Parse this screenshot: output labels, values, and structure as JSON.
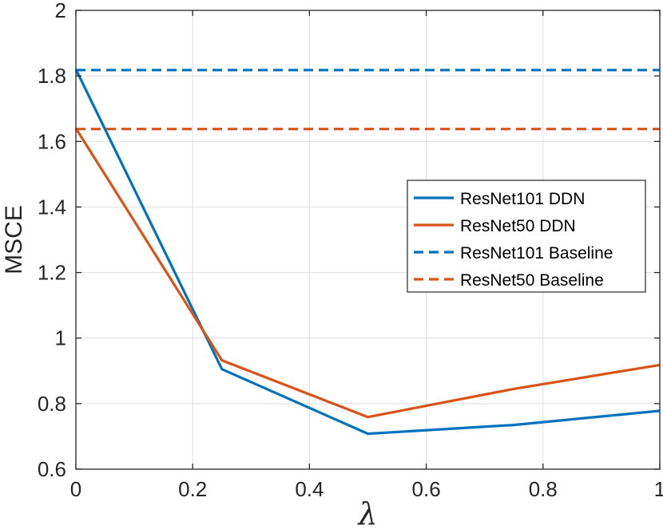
{
  "chart_data": {
    "type": "line",
    "title": "",
    "xlabel": "λ",
    "ylabel": "MSCE",
    "xlim": [
      0,
      1
    ],
    "ylim": [
      0.6,
      2
    ],
    "xticks": [
      0,
      0.2,
      0.4,
      0.6,
      0.8,
      1
    ],
    "xtick_labels": [
      "0",
      "0.2",
      "0.4",
      "0.6",
      "0.8",
      "1"
    ],
    "yticks": [
      0.6,
      0.8,
      1,
      1.2,
      1.4,
      1.6,
      1.8,
      2
    ],
    "ytick_labels": [
      "0.6",
      "0.8",
      "1",
      "1.2",
      "1.4",
      "1.6",
      "1.8",
      "2"
    ],
    "grid": true,
    "legend_position": "center-right",
    "series": [
      {
        "name": "ResNet101 DDN",
        "style": "solid",
        "color": "#0072BD",
        "x": [
          0,
          0.25,
          0.5,
          0.75,
          1
        ],
        "y": [
          1.82,
          0.905,
          0.708,
          0.735,
          0.778
        ]
      },
      {
        "name": "ResNet50 DDN",
        "style": "solid",
        "color": "#D95319",
        "x": [
          0,
          0.25,
          0.5,
          0.75,
          1
        ],
        "y": [
          1.64,
          0.932,
          0.759,
          0.845,
          0.918
        ]
      },
      {
        "name": "ResNet101 Baseline",
        "style": "dashed",
        "color": "#0072BD",
        "x": [
          0,
          1
        ],
        "y": [
          1.818,
          1.818
        ]
      },
      {
        "name": "ResNet50 Baseline",
        "style": "dashed",
        "color": "#D95319",
        "x": [
          0,
          1
        ],
        "y": [
          1.638,
          1.638
        ]
      }
    ]
  }
}
